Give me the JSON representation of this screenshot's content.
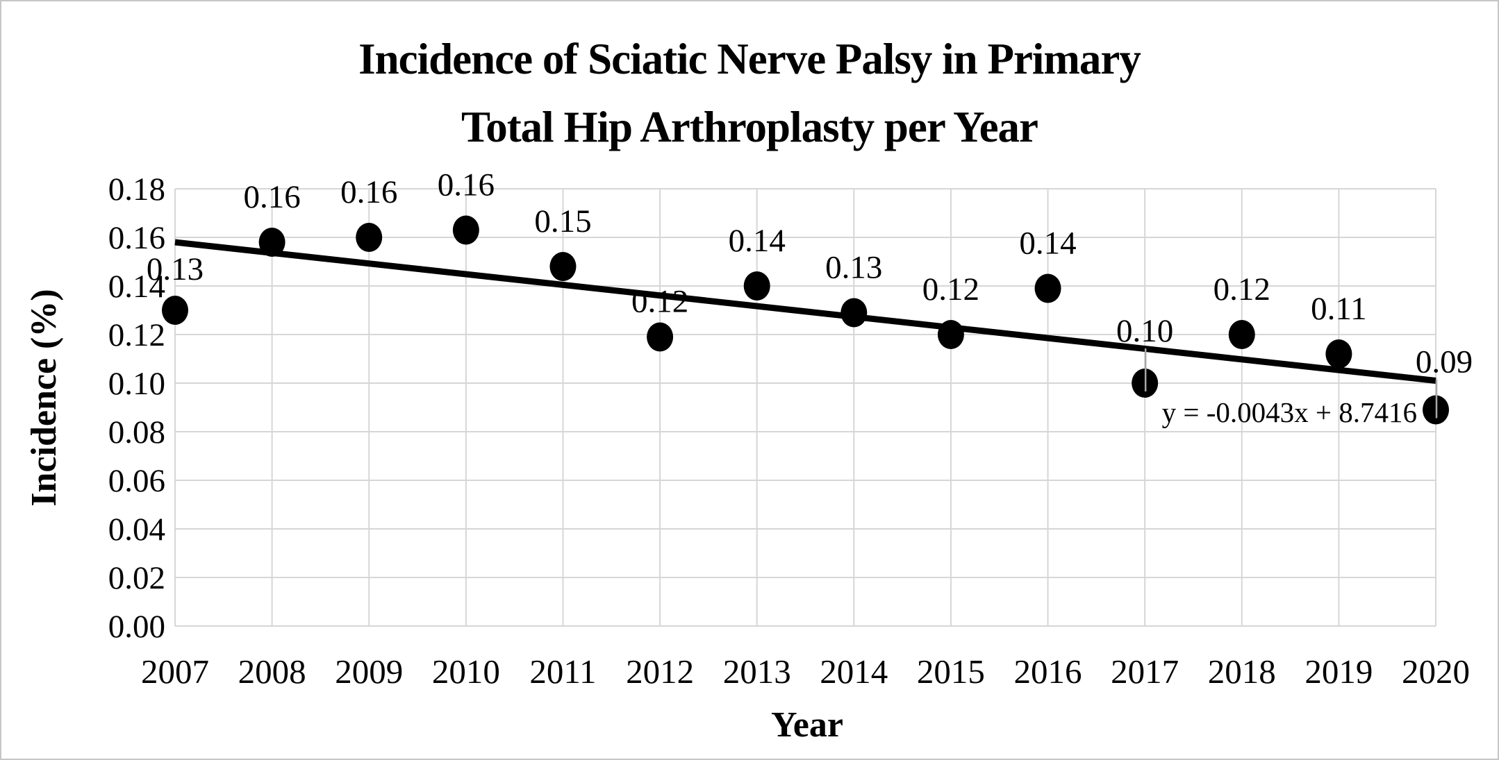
{
  "title": {
    "line1": "Incidence of Sciatic Nerve Palsy in Primary",
    "line2": "Total Hip Arthroplasty per Year"
  },
  "axes": {
    "y_title": "Incidence (%)",
    "x_title": "Year"
  },
  "chart_data": {
    "type": "scatter",
    "title": "Incidence of Sciatic Nerve Palsy in Primary Total Hip Arthroplasty per Year",
    "xlabel": "Year",
    "ylabel": "Incidence (%)",
    "x": [
      2007,
      2008,
      2009,
      2010,
      2011,
      2012,
      2013,
      2014,
      2015,
      2016,
      2017,
      2018,
      2019,
      2020
    ],
    "x_tick_labels": [
      "2007",
      "2008",
      "2009",
      "2010",
      "2011",
      "2012",
      "2013",
      "2014",
      "2015",
      "2016",
      "2017",
      "2018",
      "2019",
      "2020"
    ],
    "values": [
      0.13,
      0.16,
      0.16,
      0.16,
      0.15,
      0.12,
      0.14,
      0.13,
      0.12,
      0.14,
      0.1,
      0.12,
      0.11,
      0.09
    ],
    "point_labels": [
      "0.13",
      "0.16",
      "0.16",
      "0.16",
      "0.15",
      "0.12",
      "0.14",
      "0.13",
      "0.12",
      "0.14",
      "0.10",
      "0.12",
      "0.11",
      "0.09"
    ],
    "plot_values": [
      0.13,
      0.158,
      0.16,
      0.163,
      0.148,
      0.119,
      0.14,
      0.129,
      0.12,
      0.139,
      0.1,
      0.12,
      0.112,
      0.089
    ],
    "ylim": [
      0,
      0.18
    ],
    "ytick_step": 0.02,
    "y_ticks": [
      "0.18",
      "0.16",
      "0.14",
      "0.12",
      "0.10",
      "0.08",
      "0.06",
      "0.04",
      "0.02",
      "0.00"
    ],
    "grid": true,
    "legend": "none",
    "trendline": {
      "equation": "y = -0.0043x + 8.7416",
      "start_value": 0.158,
      "end_value": 0.101
    },
    "leader_line_years": [
      2017,
      2020
    ],
    "colors": {
      "marker": "#000000",
      "trendline": "#000000",
      "gridline": "#d6d6d6",
      "leader": "#a8a8a8",
      "text": "#000000",
      "background": "#ffffff"
    }
  }
}
